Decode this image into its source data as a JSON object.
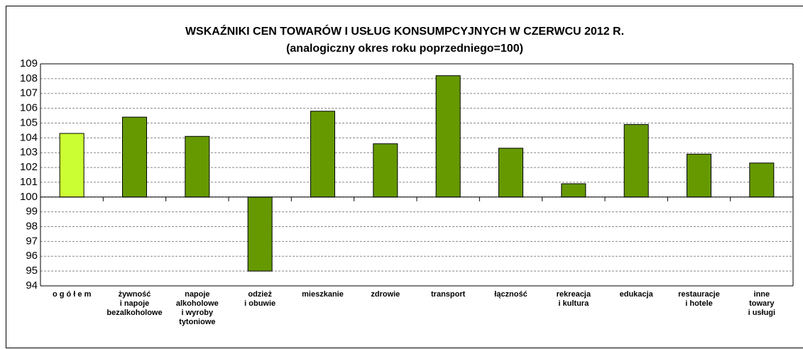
{
  "chart_data": {
    "type": "bar",
    "title": "WSKAŹNIKI CEN TOWARÓW I USŁUG KONSUMPCYJNYCH W CZERWCU 2012 R.",
    "subtitle": "(analogiczny okres roku poprzedniego=100)",
    "categories": [
      "o g ó ł e m",
      "żywność\ni napoje\nbezalkoholowe",
      "napoje\nalkoholowe\ni wyroby\ntytoniowe",
      "odzież\ni obuwie",
      "mieszkanie",
      "zdrowie",
      "transport",
      "łączność",
      "rekreacja\ni kultura",
      "edukacja",
      "restauracje\ni hotele",
      "inne\ntowary\ni usługi"
    ],
    "values": [
      104.3,
      105.4,
      104.1,
      95.0,
      105.8,
      103.6,
      108.2,
      103.3,
      100.9,
      104.9,
      102.9,
      102.3
    ],
    "colors": [
      "#ccff33",
      "#669900",
      "#669900",
      "#669900",
      "#669900",
      "#669900",
      "#669900",
      "#669900",
      "#669900",
      "#669900",
      "#669900",
      "#669900"
    ],
    "baseline": 100,
    "ylim": [
      94,
      109
    ],
    "yticks": [
      94,
      95,
      96,
      97,
      98,
      99,
      100,
      101,
      102,
      103,
      104,
      105,
      106,
      107,
      108,
      109
    ],
    "grid": true
  }
}
